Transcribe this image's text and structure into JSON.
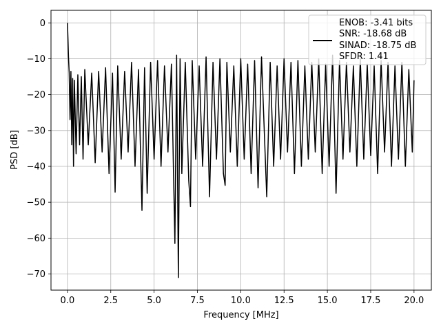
{
  "chart_data": {
    "type": "line",
    "title": "",
    "xlabel": "Frequency [MHz]",
    "ylabel": "PSD [dB]",
    "xlim": [
      -0.95,
      21.0
    ],
    "ylim": [
      -74.5,
      3.5
    ],
    "grid": true,
    "legend_position": "top-right",
    "x_ticks": [
      0.0,
      2.5,
      5.0,
      7.5,
      10.0,
      12.5,
      15.0,
      17.5,
      20.0
    ],
    "x_tick_labels": [
      "0.0",
      "2.5",
      "5.0",
      "7.5",
      "10.0",
      "12.5",
      "15.0",
      "17.5",
      "20.0"
    ],
    "y_ticks": [
      0,
      -10,
      -20,
      -30,
      -40,
      -50,
      -60,
      -70
    ],
    "y_tick_labels": [
      "0",
      "−10",
      "−20",
      "−30",
      "−40",
      "−50",
      "−60",
      "−70"
    ],
    "legend_entries": [
      "ENOB: -3.41 bits",
      "SNR: -18.68 dB",
      "SINAD: -18.75 dB",
      "SFDR: 1.41"
    ],
    "series": [
      {
        "color": "#000000",
        "x": [
          0.0,
          0.03,
          0.06,
          0.1,
          0.15,
          0.2,
          0.25,
          0.3,
          0.35,
          0.4,
          0.5,
          0.6,
          0.7,
          0.8,
          0.9,
          1.0,
          1.2,
          1.4,
          1.6,
          1.8,
          2.0,
          2.2,
          2.4,
          2.6,
          2.75,
          2.9,
          3.1,
          3.3,
          3.5,
          3.7,
          3.9,
          4.1,
          4.3,
          4.45,
          4.6,
          4.8,
          5.0,
          5.2,
          5.4,
          5.6,
          5.8,
          6.0,
          6.2,
          6.3,
          6.4,
          6.5,
          6.6,
          6.8,
          7.0,
          7.1,
          7.2,
          7.4,
          7.6,
          7.8,
          8.0,
          8.2,
          8.4,
          8.6,
          8.8,
          9.0,
          9.1,
          9.2,
          9.4,
          9.6,
          9.8,
          10.0,
          10.2,
          10.4,
          10.6,
          10.8,
          11.0,
          11.2,
          11.5,
          11.7,
          11.9,
          12.1,
          12.3,
          12.5,
          12.7,
          12.9,
          13.1,
          13.3,
          13.5,
          13.7,
          13.9,
          14.1,
          14.3,
          14.5,
          14.7,
          14.9,
          15.1,
          15.3,
          15.5,
          15.7,
          15.9,
          16.1,
          16.3,
          16.5,
          16.7,
          16.9,
          17.1,
          17.3,
          17.5,
          17.7,
          17.9,
          18.1,
          18.3,
          18.5,
          18.7,
          18.9,
          19.1,
          19.3,
          19.5,
          19.7,
          19.9,
          20.0
        ],
        "y": [
          0.0,
          -4.5,
          -9.5,
          -14.0,
          -27.0,
          -13.5,
          -34.0,
          -15.5,
          -40.0,
          -16.0,
          -36.5,
          -14.5,
          -34.0,
          -15.0,
          -38.0,
          -13.0,
          -34.0,
          -14.0,
          -39.0,
          -13.5,
          -36.0,
          -12.5,
          -42.0,
          -14.0,
          -47.2,
          -12.0,
          -38.0,
          -13.5,
          -36.0,
          -11.0,
          -40.0,
          -13.0,
          -52.3,
          -12.5,
          -47.5,
          -11.0,
          -38.0,
          -10.5,
          -40.0,
          -12.0,
          -36.0,
          -11.5,
          -61.5,
          -9.0,
          -71.0,
          -10.0,
          -42.0,
          -11.0,
          -44.0,
          -51.2,
          -10.5,
          -38.0,
          -12.0,
          -40.0,
          -9.5,
          -48.5,
          -11.0,
          -38.0,
          -10.0,
          -42.0,
          -45.3,
          -11.0,
          -36.0,
          -12.0,
          -40.0,
          -10.0,
          -38.0,
          -11.5,
          -42.0,
          -10.5,
          -46.0,
          -9.5,
          -48.5,
          -11.0,
          -40.0,
          -12.0,
          -38.0,
          -10.0,
          -36.0,
          -11.0,
          -42.0,
          -10.5,
          -40.0,
          -12.0,
          -38.0,
          -11.0,
          -36.0,
          -10.0,
          -42.0,
          -11.5,
          -40.0,
          -9.0,
          -47.5,
          -10.5,
          -38.0,
          -11.0,
          -36.0,
          -12.0,
          -40.0,
          -10.0,
          -38.0,
          -11.5,
          -37.0,
          -12.0,
          -42.0,
          -10.5,
          -36.0,
          -11.0,
          -40.0,
          -12.0,
          -38.0,
          -11.0,
          -40.0,
          -13.0,
          -36.0,
          -16.0
        ]
      }
    ]
  }
}
